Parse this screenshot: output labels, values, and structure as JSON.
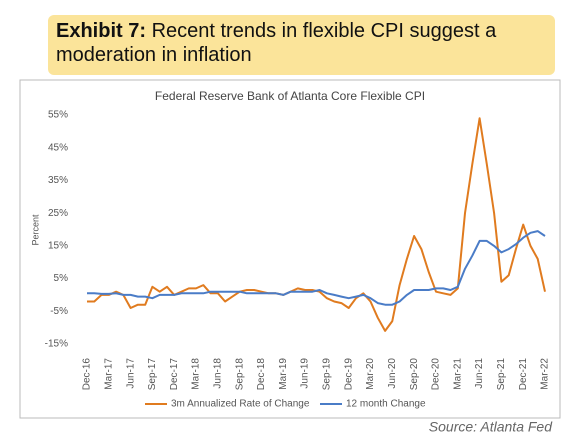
{
  "header": {
    "label": "Exhibit 7:",
    "headline": "Recent trends in flexible CPI suggest a moderation in inflation"
  },
  "chart_data": {
    "type": "line",
    "title": "Federal Reserve Bank of Atlanta Core Flexible CPI",
    "y_label": "Percent",
    "categories": [
      "Dec-16",
      null,
      null,
      "Mar-17",
      null,
      null,
      "Jun-17",
      null,
      null,
      "Sep-17",
      null,
      null,
      "Dec-17",
      null,
      null,
      "Mar-18",
      null,
      null,
      "Jun-18",
      null,
      null,
      "Sep-18",
      null,
      null,
      "Dec-18",
      null,
      null,
      "Mar-19",
      null,
      null,
      "Jun-19",
      null,
      null,
      "Sep-19",
      null,
      null,
      "Dec-19",
      null,
      null,
      "Mar-20",
      null,
      null,
      "Jun-20",
      null,
      null,
      "Sep-20",
      null,
      null,
      "Dec-20",
      null,
      null,
      "Mar-21",
      null,
      null,
      "Jun-21",
      null,
      null,
      "Sep-21",
      null,
      null,
      "Dec-21",
      null,
      null,
      "Mar-22"
    ],
    "series": [
      {
        "name": "3m Annualized Rate of Change",
        "color": "#e07b1f",
        "values": [
          -2,
          -2,
          0,
          0,
          1,
          0,
          -4,
          -3,
          -3,
          2.5,
          1,
          2.5,
          0,
          1,
          2,
          2,
          3,
          0.5,
          0.5,
          -2,
          -0.5,
          1,
          1.5,
          1.5,
          1,
          0.5,
          0.5,
          0,
          1,
          2,
          1.5,
          1.5,
          1,
          -1,
          -2,
          -2.5,
          -4,
          -1,
          0.5,
          -2,
          -7,
          -11,
          -8,
          3,
          11,
          18,
          14,
          7,
          1,
          0.5,
          0,
          2,
          25,
          40,
          54,
          40,
          25,
          4,
          6,
          14,
          21.5,
          15,
          11,
          1
        ]
      },
      {
        "name": "12 month Change",
        "color": "#4a7cc7",
        "values": [
          0.5,
          0.5,
          0.3,
          0.3,
          0.5,
          0,
          0,
          -0.5,
          -0.5,
          -1,
          0,
          0,
          0,
          0.5,
          0.5,
          0.5,
          0.5,
          1,
          1,
          1,
          1,
          1,
          0.5,
          0.5,
          0.5,
          0.5,
          0.5,
          0,
          1,
          1,
          1,
          1,
          1.5,
          0.5,
          0,
          -0.5,
          -1,
          -0.5,
          0,
          -1,
          -2.5,
          -3,
          -3,
          -2,
          0,
          1.5,
          1.5,
          1.5,
          2,
          2,
          1.5,
          2.5,
          8,
          12,
          16.5,
          16.5,
          15,
          13,
          14,
          15.5,
          17.5,
          19,
          19.5,
          18
        ]
      }
    ],
    "ylim": [
      -15,
      55
    ],
    "yticks": [
      {
        "value": 55,
        "label": "55%"
      },
      {
        "value": 45,
        "label": "45%"
      },
      {
        "value": 35,
        "label": "35%"
      },
      {
        "value": 25,
        "label": "25%"
      },
      {
        "value": 15,
        "label": "15%"
      },
      {
        "value": 5,
        "label": "5%"
      },
      {
        "value": -5,
        "label": "-5%"
      },
      {
        "value": -15,
        "label": "-15%"
      }
    ],
    "grid": false,
    "legend": "bottom",
    "source": "Source: Atlanta Fed"
  }
}
